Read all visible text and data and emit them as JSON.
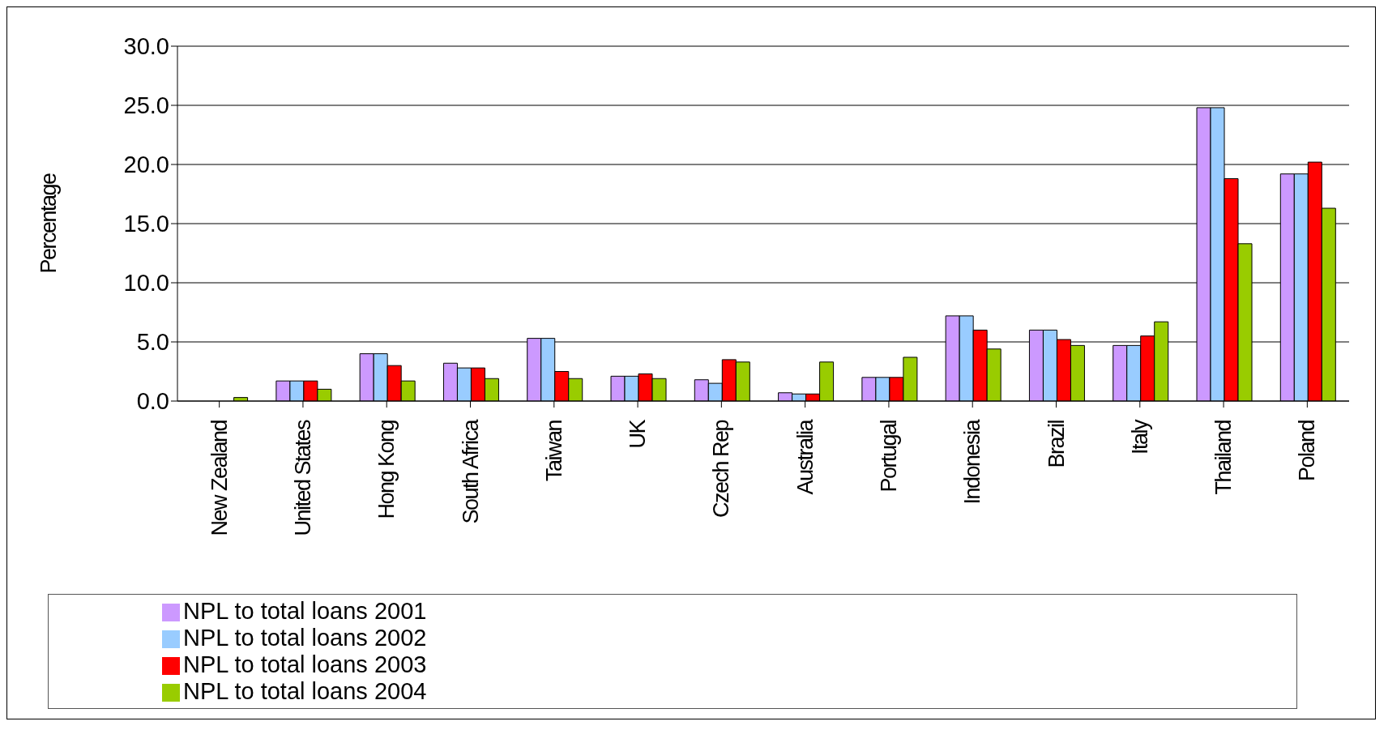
{
  "chart_data": {
    "type": "bar",
    "ylabel": "Percentage",
    "categories": [
      "New Zealand",
      "United States",
      "Hong Kong",
      "South Africa",
      "Taiwan",
      "UK",
      "Czech Rep",
      "Australia",
      "Portugal",
      "Indonesia",
      "Brazil",
      "Italy",
      "Thailand",
      "Poland"
    ],
    "series": [
      {
        "name": "NPL to total loans 2001",
        "color": "#cc99ff",
        "values": [
          null,
          1.7,
          4.0,
          3.2,
          5.3,
          2.1,
          1.8,
          0.7,
          2.0,
          7.2,
          6.0,
          4.7,
          24.8,
          19.2
        ]
      },
      {
        "name": "NPL to total loans 2002",
        "color": "#99ccff",
        "values": [
          null,
          1.7,
          4.0,
          2.8,
          5.3,
          2.1,
          1.5,
          0.6,
          2.0,
          7.2,
          6.0,
          4.7,
          24.8,
          19.2
        ]
      },
      {
        "name": "NPL to total loans 2003",
        "color": "#ff0000",
        "values": [
          null,
          1.7,
          3.0,
          2.8,
          2.5,
          2.3,
          3.5,
          0.6,
          2.0,
          6.0,
          5.2,
          5.5,
          18.8,
          20.2
        ]
      },
      {
        "name": "NPL to total loans 2004",
        "color": "#99cc00",
        "values": [
          0.3,
          1.0,
          1.7,
          1.9,
          1.9,
          1.9,
          3.3,
          3.3,
          3.7,
          4.4,
          4.7,
          6.7,
          13.3,
          16.3
        ]
      }
    ],
    "ylim": [
      0,
      30
    ],
    "yticks": [
      {
        "value": 0,
        "label": "0.0"
      },
      {
        "value": 5,
        "label": "5.0"
      },
      {
        "value": 10,
        "label": "10.0"
      },
      {
        "value": 15,
        "label": "15.0"
      },
      {
        "value": 20,
        "label": "20.0"
      },
      {
        "value": 25,
        "label": "25.0"
      },
      {
        "value": 30,
        "label": "30.0"
      }
    ],
    "grid": "y",
    "legend": "bottom"
  }
}
